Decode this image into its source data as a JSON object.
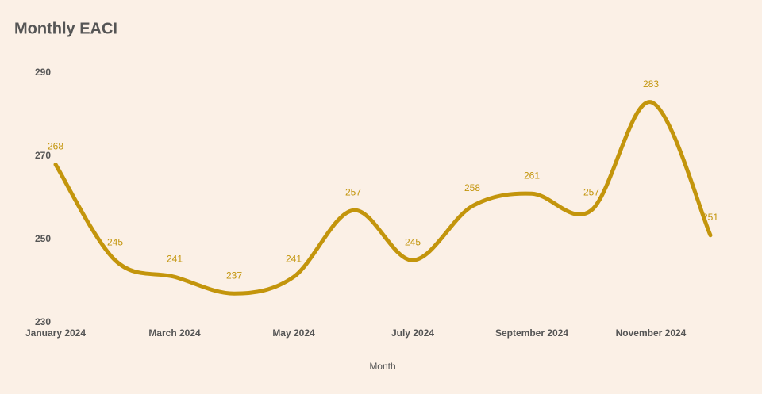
{
  "chart_data": {
    "type": "line",
    "title": "Monthly EACI",
    "x_label": "Month",
    "categories": [
      "January 2024",
      null,
      "March 2024",
      null,
      "May 2024",
      null,
      "July 2024",
      null,
      "September 2024",
      null,
      "November 2024",
      null
    ],
    "series": [
      {
        "name": "EACI",
        "color": "#c3950c",
        "values": [
          268,
          245,
          241,
          237,
          241,
          257,
          245,
          258,
          261,
          257,
          283,
          251
        ]
      }
    ],
    "ylim": [
      230,
      290
    ],
    "yticks": [
      230,
      250,
      270,
      290
    ],
    "grid": false
  }
}
